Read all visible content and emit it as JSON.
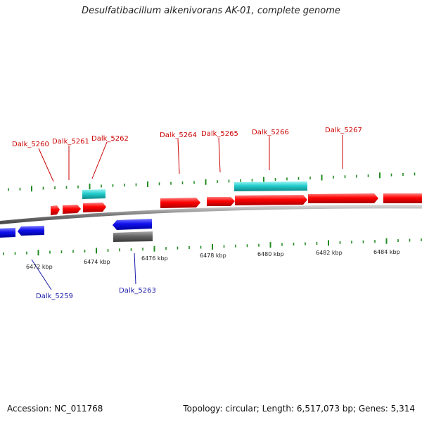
{
  "title": "Desulfatibacillum alkenivorans AK-01, complete genome",
  "footer": {
    "accession": "Accession: NC_011768",
    "topology": "Topology: circular; Length: 6,517,073 bp; Genes: 5,314"
  },
  "colors": {
    "forward": "#ff0000",
    "reverse": "#0000ee",
    "rna": "#22cccc",
    "pseudo": "#666666",
    "backbone": "#888888",
    "tick": "#228b22"
  },
  "scale_labels": [
    "6472 kbp",
    "6474 kbp",
    "6476 kbp",
    "6478 kbp",
    "6480 kbp",
    "6482 kbp",
    "6484 kbp"
  ],
  "gene_labels": [
    {
      "text": "Dalk_5260",
      "strand": "forward"
    },
    {
      "text": "Dalk_5261",
      "strand": "forward"
    },
    {
      "text": "Dalk_5262",
      "strand": "forward"
    },
    {
      "text": "Dalk_5264",
      "strand": "forward"
    },
    {
      "text": "Dalk_5265",
      "strand": "forward"
    },
    {
      "text": "Dalk_5266",
      "strand": "forward"
    },
    {
      "text": "Dalk_5267",
      "strand": "forward"
    },
    {
      "text": "Dalk_5259",
      "strand": "reverse"
    },
    {
      "text": "Dalk_5263",
      "strand": "reverse"
    }
  ]
}
